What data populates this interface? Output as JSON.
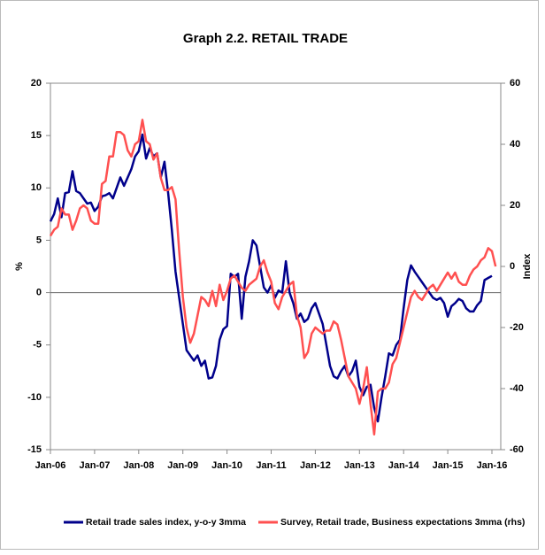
{
  "chart_data": {
    "type": "line",
    "title": "Graph 2.2. RETAIL TRADE",
    "y_label": "%",
    "y2_label": "Index",
    "categories": [
      "Jan-06",
      null,
      null,
      null,
      null,
      null,
      null,
      null,
      null,
      null,
      null,
      null,
      "Jan-07",
      null,
      null,
      null,
      null,
      null,
      null,
      null,
      null,
      null,
      null,
      null,
      "Jan-08",
      null,
      null,
      null,
      null,
      null,
      null,
      null,
      null,
      null,
      null,
      null,
      "Jan-09",
      null,
      null,
      null,
      null,
      null,
      null,
      null,
      null,
      null,
      null,
      null,
      "Jan-10",
      null,
      null,
      null,
      null,
      null,
      null,
      null,
      null,
      null,
      null,
      null,
      "Jan-11",
      null,
      null,
      null,
      null,
      null,
      null,
      null,
      null,
      null,
      null,
      null,
      "Jan-12",
      null,
      null,
      null,
      null,
      null,
      null,
      null,
      null,
      null,
      null,
      null,
      "Jan-13",
      null,
      null,
      null,
      null,
      null,
      null,
      null,
      null,
      null,
      null,
      null,
      "Jan-14",
      null,
      null,
      null,
      null,
      null,
      null,
      null,
      null,
      null,
      null,
      null,
      "Jan-15",
      null,
      null,
      null,
      null,
      null,
      null,
      null,
      null,
      null,
      null,
      null,
      "Jan-16",
      null
    ],
    "series": [
      {
        "name": "Retail trade sales index, y-o-y 3mma",
        "color": "#00008b",
        "axis": "y",
        "values": [
          6.8,
          7.5,
          9.0,
          7.2,
          9.5,
          9.6,
          11.6,
          9.7,
          9.5,
          9.0,
          8.5,
          8.6,
          7.8,
          8.2,
          9.2,
          9.3,
          9.5,
          9.0,
          10.0,
          11.0,
          10.2,
          11.0,
          11.8,
          13.0,
          13.5,
          15.1,
          12.8,
          13.8,
          13.0,
          13.3,
          11.0,
          12.5,
          9.5,
          6.0,
          2.0,
          -0.5,
          -3.0,
          -5.5,
          -6.0,
          -6.5,
          -6.0,
          -7.0,
          -6.5,
          -8.2,
          -8.1,
          -7.0,
          -4.5,
          -3.5,
          -3.2,
          1.8,
          1.5,
          1.8,
          -2.5,
          1.5,
          3.0,
          5.0,
          4.5,
          2.5,
          0.5,
          0.0,
          0.7,
          -0.5,
          0.2,
          0.0,
          3.0,
          0.0,
          -1.0,
          -2.5,
          -2.0,
          -2.8,
          -2.5,
          -1.5,
          -1.0,
          -2.0,
          -3.0,
          -5.0,
          -7.0,
          -8.0,
          -8.2,
          -7.5,
          -7.0,
          -8.0,
          -7.5,
          -6.5,
          -9.0,
          -9.8,
          -9.0,
          -8.8,
          -11.0,
          -12.3,
          -10.0,
          -8.0,
          -5.8,
          -6.0,
          -5.0,
          -4.5,
          -1.5,
          1.2,
          2.6,
          2.0,
          1.5,
          1.0,
          0.5,
          0.0,
          -0.5,
          -0.7,
          -0.5,
          -1.0,
          -2.3,
          -1.3,
          -1.0,
          -0.6,
          -0.8,
          -1.5,
          -1.8,
          -1.8,
          -1.2,
          -0.8,
          1.2,
          1.4,
          1.6,
          null
        ]
      },
      {
        "name": "Survey, Retail trade, Business expectations 3mma (rhs)",
        "color": "#ff5050",
        "axis": "y2",
        "values": [
          10,
          12,
          13,
          19,
          17,
          17,
          12,
          15,
          19,
          20,
          19,
          15,
          14,
          14,
          27,
          28,
          36,
          36,
          44,
          44,
          43,
          38,
          36,
          40,
          41,
          48,
          41,
          40,
          35,
          37,
          29,
          25,
          25,
          26,
          22,
          5,
          -10,
          -20,
          -25,
          -22,
          -16,
          -10,
          -11,
          -13,
          -8,
          -13,
          -6,
          -11,
          -8,
          -4,
          -3,
          -5,
          -7,
          -8,
          -6,
          -5,
          -4,
          0,
          2,
          -2,
          -5,
          -12,
          -14,
          -10,
          -8,
          -6,
          -5,
          -16,
          -20,
          -30,
          -28,
          -22,
          -20,
          -21,
          -22,
          -21,
          -21,
          -18,
          -19,
          -24,
          -30,
          -36,
          -38,
          -40,
          -45,
          -40,
          -33,
          -45,
          -55,
          -41,
          -40,
          -40,
          -38,
          -32,
          -30,
          -25,
          -20,
          -15,
          -10,
          -8,
          -10,
          -11,
          -9,
          -7,
          -6,
          -8,
          -6,
          -4,
          -2,
          -4,
          -2,
          -5,
          -6,
          -6,
          -3,
          -1,
          0,
          2,
          3,
          6,
          5,
          0
        ]
      }
    ],
    "ylim": [
      -15,
      20
    ],
    "yticks": [
      -15,
      -10,
      -5,
      0,
      5,
      10,
      15,
      20
    ],
    "y2lim": [
      -60,
      60
    ],
    "y2ticks": [
      -60,
      -40,
      -20,
      0,
      20,
      40,
      60
    ],
    "legend": "bottom"
  }
}
